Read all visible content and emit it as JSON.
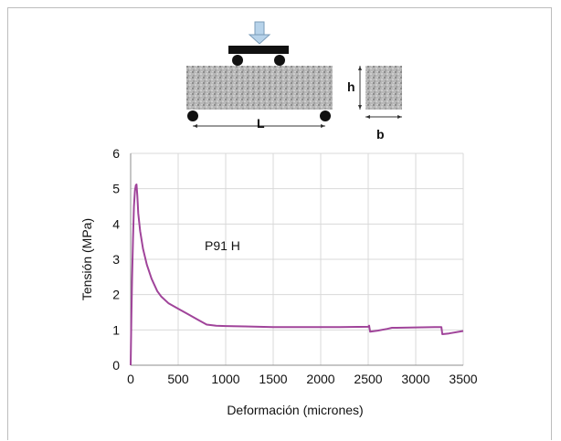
{
  "schematic": {
    "h_label": "h",
    "L_label": "L",
    "b_label": "b"
  },
  "chart_data": {
    "type": "line",
    "title": "",
    "xlabel": "Deformación (micrones)",
    "ylabel": "Tensión (MPa)",
    "xlim": [
      0,
      3500
    ],
    "ylim": [
      0,
      6
    ],
    "xticks": [
      0,
      500,
      1000,
      1500,
      2000,
      2500,
      3000,
      3500
    ],
    "yticks": [
      0,
      1,
      2,
      3,
      4,
      5,
      6
    ],
    "grid": true,
    "annotation": "P91 H",
    "series": [
      {
        "color": "#a0449a",
        "x": [
          0,
          8,
          15,
          25,
          35,
          45,
          55,
          62,
          70,
          80,
          100,
          130,
          170,
          220,
          280,
          320,
          400,
          500,
          600,
          700,
          800,
          900,
          1000,
          1200,
          1500,
          1800,
          2000,
          2200,
          2500,
          2510,
          2520,
          2600,
          2700,
          2750,
          2800,
          3000,
          3200,
          3270,
          3280,
          3350,
          3500
        ],
        "y": [
          0,
          1.4,
          2.5,
          3.6,
          4.5,
          4.95,
          5.1,
          5.12,
          4.8,
          4.3,
          3.8,
          3.3,
          2.85,
          2.45,
          2.1,
          1.95,
          1.75,
          1.6,
          1.45,
          1.3,
          1.15,
          1.12,
          1.11,
          1.1,
          1.08,
          1.08,
          1.08,
          1.08,
          1.09,
          1.12,
          0.95,
          0.98,
          1.03,
          1.06,
          1.06,
          1.07,
          1.08,
          1.08,
          0.88,
          0.9,
          0.97
        ]
      }
    ]
  }
}
